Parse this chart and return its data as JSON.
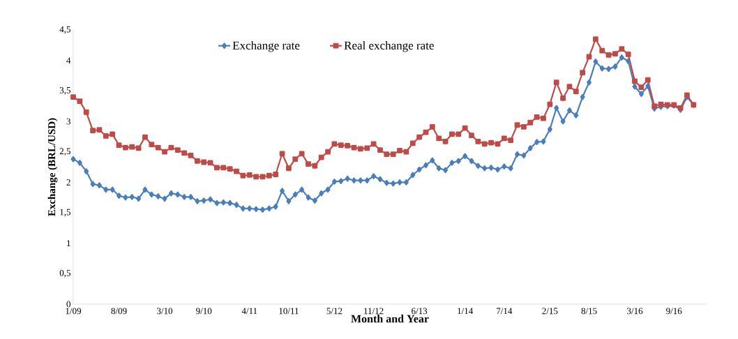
{
  "chart_data": {
    "type": "line",
    "xlabel": "Month and Year",
    "ylabel": "Exchange (BRL/USD)",
    "categories": [
      "1/09",
      null,
      null,
      null,
      null,
      null,
      null,
      "8/09",
      null,
      null,
      null,
      null,
      null,
      null,
      "3/10",
      null,
      null,
      null,
      null,
      null,
      "9/10",
      null,
      null,
      null,
      null,
      null,
      null,
      "4/11",
      null,
      null,
      null,
      null,
      null,
      "10/11",
      null,
      null,
      null,
      null,
      null,
      null,
      "5/12",
      null,
      null,
      null,
      null,
      null,
      "11/12",
      null,
      null,
      null,
      null,
      null,
      null,
      "6/13",
      null,
      null,
      null,
      null,
      null,
      null,
      "1/14",
      null,
      null,
      null,
      null,
      null,
      "7/14",
      null,
      null,
      null,
      null,
      null,
      null,
      "2/15",
      null,
      null,
      null,
      null,
      null,
      "8/15",
      null,
      null,
      null,
      null,
      null,
      null,
      "3/16",
      null,
      null,
      null,
      null,
      null,
      "9/16",
      null,
      null,
      null
    ],
    "series": [
      {
        "name": "Exchange rate",
        "color": "#4a7ebb",
        "marker": "diamond",
        "values": [
          2.38,
          2.32,
          2.18,
          1.97,
          1.95,
          1.88,
          1.88,
          1.78,
          1.75,
          1.76,
          1.73,
          1.88,
          1.8,
          1.77,
          1.73,
          1.82,
          1.8,
          1.76,
          1.76,
          1.69,
          1.7,
          1.72,
          1.66,
          1.67,
          1.66,
          1.63,
          1.57,
          1.57,
          1.56,
          1.55,
          1.57,
          1.6,
          1.86,
          1.69,
          1.8,
          1.88,
          1.75,
          1.7,
          1.82,
          1.88,
          2.01,
          2.02,
          2.06,
          2.03,
          2.03,
          2.03,
          2.1,
          2.05,
          1.99,
          1.98,
          2.0,
          2.0,
          2.12,
          2.21,
          2.28,
          2.36,
          2.23,
          2.2,
          2.32,
          2.35,
          2.43,
          2.35,
          2.27,
          2.23,
          2.24,
          2.21,
          2.26,
          2.23,
          2.46,
          2.44,
          2.56,
          2.66,
          2.67,
          2.87,
          3.22,
          3.0,
          3.18,
          3.1,
          3.4,
          3.64,
          3.98,
          3.87,
          3.86,
          3.9,
          4.05,
          3.99,
          3.57,
          3.45,
          3.58,
          3.21,
          3.24,
          3.25,
          3.26,
          3.19,
          3.4,
          3.27
        ]
      },
      {
        "name": "Real exchange rate",
        "color": "#be4b48",
        "marker": "square",
        "values": [
          3.4,
          3.33,
          3.15,
          2.85,
          2.86,
          2.76,
          2.79,
          2.61,
          2.57,
          2.58,
          2.56,
          2.74,
          2.62,
          2.57,
          2.5,
          2.57,
          2.53,
          2.48,
          2.44,
          2.35,
          2.33,
          2.32,
          2.24,
          2.24,
          2.22,
          2.18,
          2.11,
          2.12,
          2.09,
          2.09,
          2.11,
          2.13,
          2.47,
          2.23,
          2.38,
          2.47,
          2.3,
          2.27,
          2.41,
          2.5,
          2.63,
          2.61,
          2.6,
          2.57,
          2.55,
          2.56,
          2.63,
          2.53,
          2.46,
          2.46,
          2.52,
          2.5,
          2.64,
          2.74,
          2.82,
          2.91,
          2.72,
          2.67,
          2.79,
          2.79,
          2.89,
          2.77,
          2.67,
          2.63,
          2.65,
          2.63,
          2.72,
          2.69,
          2.94,
          2.91,
          2.98,
          3.07,
          3.05,
          3.28,
          3.64,
          3.38,
          3.57,
          3.49,
          3.8,
          4.06,
          4.35,
          4.16,
          4.09,
          4.11,
          4.19,
          4.1,
          3.66,
          3.56,
          3.68,
          3.25,
          3.28,
          3.27,
          3.27,
          3.22,
          3.43,
          3.27
        ]
      }
    ],
    "ylim": [
      0,
      4.5
    ],
    "yticks": [
      0,
      {
        "value": 0.5,
        "label": "0,5"
      },
      1,
      {
        "value": 1.5,
        "label": "1,5"
      },
      2,
      {
        "value": 2.5,
        "label": "2,5"
      },
      3,
      {
        "value": 3.5,
        "label": "3,5"
      },
      4,
      {
        "value": 4.5,
        "label": "4,5"
      }
    ],
    "legend": "top",
    "grid": false,
    "line_style": "solid"
  }
}
